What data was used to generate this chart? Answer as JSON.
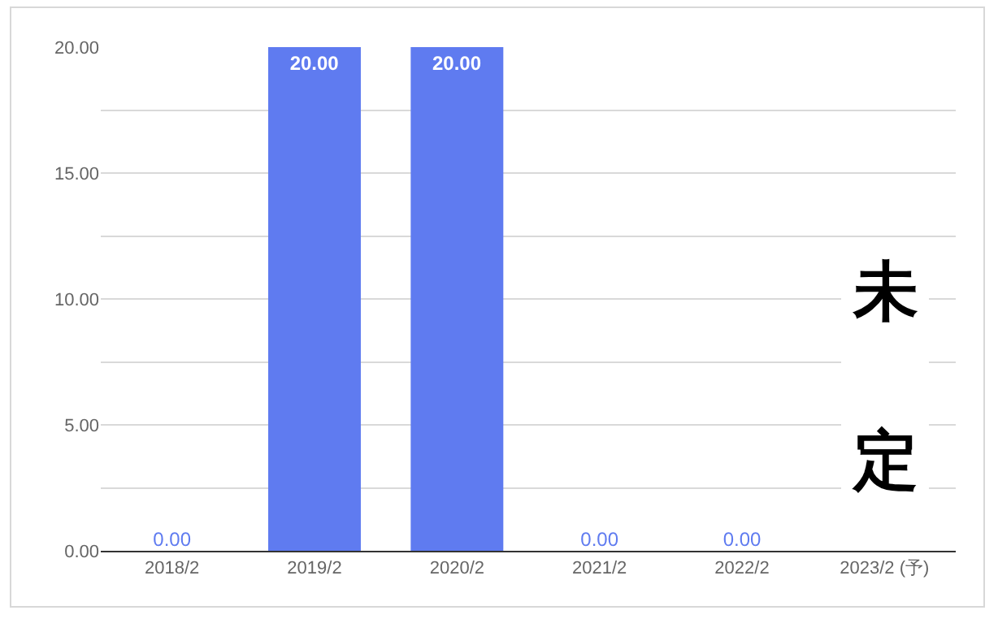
{
  "chart_data": {
    "type": "bar",
    "categories": [
      "2018/2",
      "2019/2",
      "2020/2",
      "2021/2",
      "2022/2",
      "2023/2 (予)"
    ],
    "values": [
      0,
      20,
      20,
      0,
      0,
      null
    ],
    "value_labels": [
      "0.00",
      "20.00",
      "20.00",
      "0.00",
      "0.00",
      null
    ],
    "color": "#5f7bf0",
    "ylim": [
      0,
      20
    ],
    "yticks": [
      {
        "value": 0,
        "label": "0.00"
      },
      {
        "value": 2.5,
        "label": null
      },
      {
        "value": 5,
        "label": "5.00"
      },
      {
        "value": 7.5,
        "label": null
      },
      {
        "value": 10,
        "label": "10.00"
      },
      {
        "value": 12.5,
        "label": null
      },
      {
        "value": 15,
        "label": "15.00"
      },
      {
        "value": 17.5,
        "label": null
      },
      {
        "value": 20,
        "label": "20.00"
      }
    ],
    "grid": true,
    "annotations": [
      "未定"
    ]
  }
}
